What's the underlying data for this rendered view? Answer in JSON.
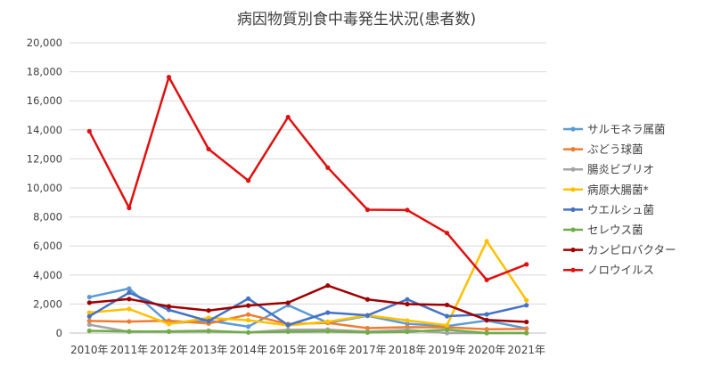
{
  "chart_data": {
    "type": "line",
    "title": "病因物質別食中毒発生状況(患者数)",
    "xlabel": "",
    "ylabel": "",
    "categories": [
      "2010年",
      "2011年",
      "2012年",
      "2013年",
      "2014年",
      "2015年",
      "2016年",
      "2017年",
      "2018年",
      "2019年",
      "2020年",
      "2021年"
    ],
    "ylim": [
      0,
      20000
    ],
    "yticks": [
      "0",
      "2,000",
      "4,000",
      "6,000",
      "8,000",
      "10,000",
      "12,000",
      "14,000",
      "16,000",
      "18,000",
      "20,000"
    ],
    "grid": true,
    "legend_position": "right",
    "series": [
      {
        "name": "サルモネラ属菌",
        "color": "#5b9bd5",
        "values": [
          2476,
          3068,
          670,
          861,
          440,
          1918,
          704,
          1183,
          640,
          476,
          861,
          318
        ]
      },
      {
        "name": "ぶどう球菌",
        "color": "#ed7d31",
        "values": [
          836,
          792,
          854,
          654,
          1277,
          619,
          698,
          336,
          405,
          393,
          260,
          285
        ]
      },
      {
        "name": "腸炎ビブリオ",
        "color": "#a5a5a5",
        "values": [
          579,
          87,
          124,
          164,
          44,
          224,
          240,
          97,
          222,
          0,
          3,
          0
        ]
      },
      {
        "name": "病原大腸菌*",
        "color": "#ffc000",
        "values": [
          1406,
          1656,
          626,
          1046,
          885,
          527,
          780,
          1218,
          862,
          538,
          6330,
          2258
        ]
      },
      {
        "name": "ウエルシュ菌",
        "color": "#4472c4",
        "values": [
          1151,
          2784,
          1597,
          824,
          2373,
          551,
          1411,
          1220,
          2319,
          1166,
          1288,
          1916
        ]
      },
      {
        "name": "セレウス菌",
        "color": "#70ad47",
        "values": [
          155,
          119,
          98,
          125,
          44,
          95,
          125,
          38,
          86,
          229,
          0,
          0
        ]
      },
      {
        "name": "カンピロバクター",
        "color": "#9e0000",
        "values": [
          2092,
          2341,
          1834,
          1551,
          1893,
          2089,
          3272,
          2315,
          1995,
          1937,
          901,
          764
        ]
      },
      {
        "name": "ノロウイルス",
        "color": "#e01010",
        "values": [
          13904,
          8619,
          17632,
          12672,
          10506,
          14876,
          11397,
          8496,
          8475,
          6889,
          3660,
          4733
        ]
      }
    ]
  }
}
